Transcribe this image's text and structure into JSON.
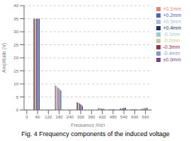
{
  "chart_data": {
    "type": "bar",
    "title": "Fig. 4 Frequency components of the induced voltage",
    "xlabel": "Frequency (Hz)",
    "ylabel": "Amplitude (V)",
    "x": [
      60,
      180,
      300,
      420,
      480,
      540,
      600,
      660
    ],
    "series": [
      {
        "name": "-0.4mm",
        "color": "#8899CC",
        "values": [
          35.0,
          9.5,
          3.0,
          0.8,
          0.3,
          0.5,
          0.3,
          0.5
        ]
      },
      {
        "name": "-0.3mm",
        "color": "#993344",
        "values": [
          35.0,
          9.2,
          2.9,
          0.75,
          0.3,
          0.55,
          0.3,
          0.55
        ]
      },
      {
        "name": "-0.2mm",
        "color": "#CCCC99",
        "values": [
          35.0,
          9.0,
          2.8,
          0.7,
          0.3,
          0.6,
          0.3,
          0.6
        ]
      },
      {
        "name": "-0.1mm",
        "color": "#99CCCC",
        "values": [
          35.0,
          8.8,
          2.7,
          0.65,
          0.3,
          0.65,
          0.3,
          0.65
        ]
      },
      {
        "name": "±0.0mm",
        "color": "#774488",
        "values": [
          35.0,
          8.5,
          2.5,
          0.6,
          0.3,
          0.7,
          0.3,
          0.7
        ]
      },
      {
        "name": "+0.1mm",
        "color": "#DD8877",
        "values": [
          35.0,
          8.3,
          2.3,
          0.55,
          0.3,
          0.75,
          0.3,
          0.75
        ]
      },
      {
        "name": "+0.2mm",
        "color": "#4466BB",
        "values": [
          35.0,
          8.0,
          2.1,
          0.5,
          0.3,
          0.8,
          0.3,
          0.8
        ]
      },
      {
        "name": "+0.3mm",
        "color": "#AABBDD",
        "values": [
          35.0,
          7.8,
          1.8,
          0.45,
          0.3,
          0.85,
          0.3,
          0.85
        ]
      },
      {
        "name": "+0.4mm",
        "color": "#223366",
        "values": [
          35.0,
          7.5,
          1.5,
          0.4,
          0.3,
          0.9,
          0.3,
          0.9
        ]
      }
    ],
    "xlim": [
      -15,
      695
    ],
    "xticks": [
      0,
      60,
      120,
      180,
      240,
      300,
      360,
      420,
      480,
      540,
      600,
      660
    ],
    "ylim": [
      0,
      40
    ],
    "yticks": [
      0,
      5,
      10,
      15,
      20,
      25,
      30,
      35,
      40
    ],
    "grid": true,
    "legend": "right"
  }
}
